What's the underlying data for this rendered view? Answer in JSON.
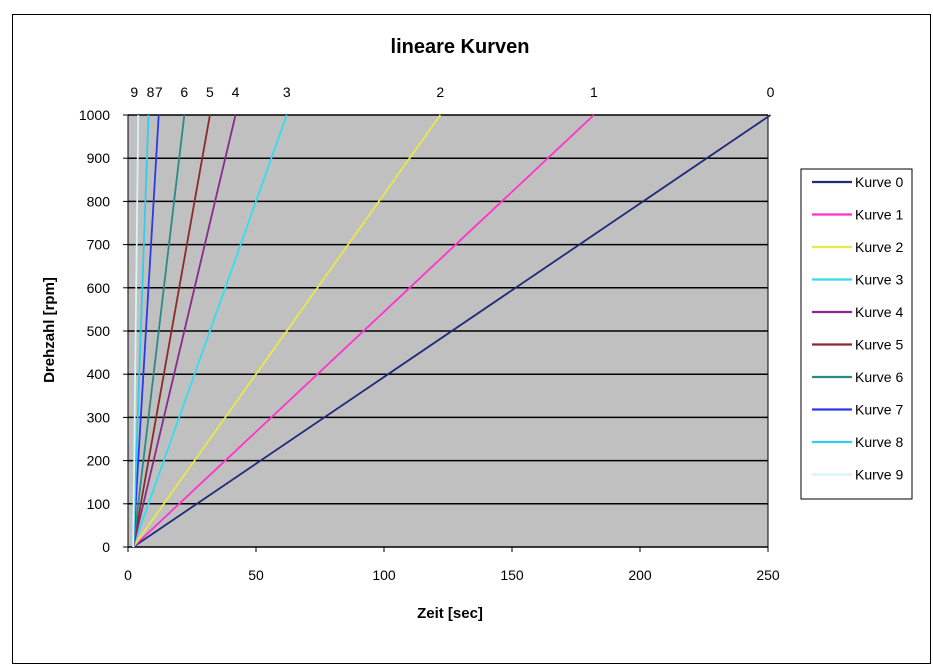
{
  "chart_data": {
    "type": "line",
    "title": "lineare Kurven",
    "xlabel": "Zeit [sec]",
    "ylabel": "Drehzahl [rpm]",
    "xlim": [
      0,
      250
    ],
    "ylim": [
      0,
      1000
    ],
    "xticks": [
      "0",
      "50",
      "100",
      "150",
      "200",
      "250"
    ],
    "yticks": [
      "0",
      "100",
      "200",
      "300",
      "400",
      "500",
      "600",
      "700",
      "800",
      "900",
      "1000"
    ],
    "grid": "horizontal",
    "legend_position": "right",
    "plot_background": "#c0c0c0",
    "series": [
      {
        "name": "Kurve 0",
        "top_label": "0",
        "color": "#1f2a7a",
        "x": [
          2,
          251
        ],
        "y": [
          0,
          1000
        ]
      },
      {
        "name": "Kurve 1",
        "top_label": "1",
        "color": "#ff33cc",
        "x": [
          2,
          182
        ],
        "y": [
          0,
          1000
        ]
      },
      {
        "name": "Kurve 2",
        "top_label": "2",
        "color": "#e8e84a",
        "x": [
          2,
          122
        ],
        "y": [
          0,
          1000
        ]
      },
      {
        "name": "Kurve 3",
        "top_label": "3",
        "color": "#33ddee",
        "x": [
          2,
          62
        ],
        "y": [
          0,
          1000
        ]
      },
      {
        "name": "Kurve 4",
        "top_label": "4",
        "color": "#8a2a8a",
        "x": [
          2,
          42
        ],
        "y": [
          0,
          1000
        ]
      },
      {
        "name": "Kurve 5",
        "top_label": "5",
        "color": "#8a2a2a",
        "x": [
          2,
          32
        ],
        "y": [
          0,
          1000
        ]
      },
      {
        "name": "Kurve 6",
        "top_label": "6",
        "color": "#2a8a8a",
        "x": [
          2,
          22
        ],
        "y": [
          0,
          1000
        ]
      },
      {
        "name": "Kurve 7",
        "top_label": "7",
        "color": "#2a3ae8",
        "x": [
          2,
          12
        ],
        "y": [
          0,
          1000
        ]
      },
      {
        "name": "Kurve 8",
        "top_label": "8",
        "color": "#33ccee",
        "x": [
          2,
          8
        ],
        "y": [
          0,
          1000
        ]
      },
      {
        "name": "Kurve 9",
        "top_label": "9",
        "color": "#d8f4f4",
        "x": [
          2,
          4
        ],
        "y": [
          0,
          1000
        ]
      }
    ]
  }
}
